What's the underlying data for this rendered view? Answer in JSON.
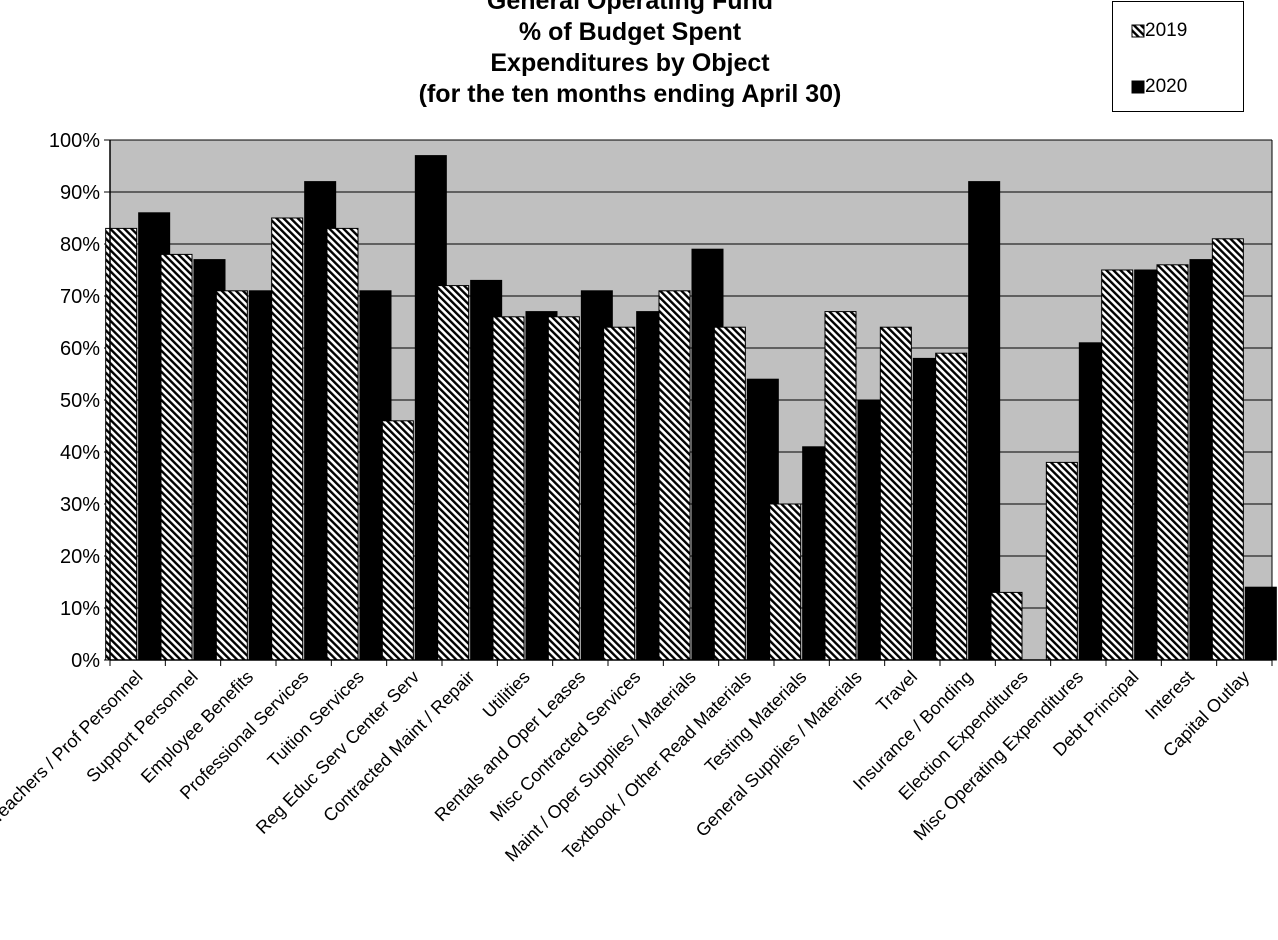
{
  "chart_data": {
    "type": "bar",
    "title_lines": [
      "General Operating Fund",
      "% of Budget Spent",
      "Expenditures by Object",
      "(for the ten months ending April 30)"
    ],
    "categories": [
      "Teachers / Prof Personnel",
      "Support Personnel",
      "Employee Benefits",
      "Professional Services",
      "Tuition Services",
      "Reg Educ Serv Center Serv",
      "Contracted Maint / Repair",
      "Utilities",
      "Rentals and Oper Leases",
      "Misc Contracted Services",
      "Maint / Oper Supplies / Materials",
      "Textbook / Other Read Materials",
      "Testing Materials",
      "General Supplies / Materials",
      "Travel",
      "Insurance / Bonding",
      "Election Expenditures",
      "Misc Operating Expenditures",
      "Debt Principal",
      "Interest",
      "Capital Outlay"
    ],
    "series": [
      {
        "name": "2019",
        "pattern": "hatched",
        "values": [
          83,
          78,
          71,
          85,
          83,
          46,
          72,
          66,
          66,
          64,
          71,
          64,
          30,
          67,
          64,
          59,
          13,
          38,
          75,
          76,
          81
        ]
      },
      {
        "name": "2020",
        "pattern": "solid",
        "values": [
          86,
          77,
          71,
          92,
          71,
          97,
          73,
          67,
          71,
          67,
          79,
          54,
          41,
          50,
          58,
          92,
          0,
          61,
          75,
          77,
          14
        ]
      }
    ],
    "yticks": [
      "0%",
      "10%",
      "20%",
      "30%",
      "40%",
      "50%",
      "60%",
      "70%",
      "80%",
      "90%",
      "100%"
    ],
    "ylim": [
      0,
      100
    ],
    "y_unit": "%",
    "grid": true,
    "legend_position": "top-right",
    "colors": {
      "plot_background": "#c0c0c0",
      "bar_2020": "#000000",
      "hatch_fg": "#000000",
      "hatch_bg": "#ffffff",
      "gridline": "#000000"
    }
  }
}
